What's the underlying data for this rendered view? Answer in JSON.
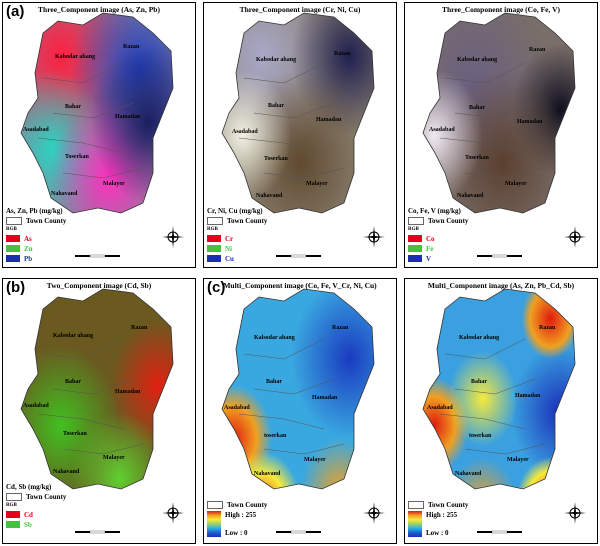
{
  "town_labels": [
    "Razan",
    "Kabodar ahang",
    "Bahar",
    "Hamadan",
    "Asadabad",
    "Toserkan",
    "Malayer",
    "Nahavand"
  ],
  "legend_common": {
    "town_county": "Town County",
    "rgb": "RGB"
  },
  "panels": [
    {
      "id": "p1",
      "letter": "(a)",
      "title": "Three_Component image (As, Zn, Pb)",
      "legend_title": "As, Zn, Pb (mg/kg)",
      "town_labels": [
        "Razan",
        "Kabodar ahang",
        "Bahar",
        "Hamadan",
        "Asadabad",
        "Toserkan",
        "Malayer",
        "Nahavand"
      ],
      "channels": [
        {
          "label": "As",
          "color": "#e3001b"
        },
        {
          "label": "Zn",
          "color": "#44c23d"
        },
        {
          "label": "Pb",
          "color": "#1a2fb0"
        }
      ]
    },
    {
      "id": "p2",
      "letter": "",
      "title": "Three_Component image (Cr, Ni, Cu)",
      "legend_title": "Cr, Ni, Cu (mg/kg)",
      "town_labels": [
        "Razan",
        "Kabodar ahang",
        "Bahar",
        "Hamadan",
        "Asadabad",
        "Toserkan",
        "Malayer",
        "Nahavand"
      ],
      "channels": [
        {
          "label": "Cr",
          "color": "#e3001b"
        },
        {
          "label": "Ni",
          "color": "#44c23d"
        },
        {
          "label": "Cu",
          "color": "#1a2fb0"
        }
      ]
    },
    {
      "id": "p3",
      "letter": "",
      "title": "Three_Component image (Co, Fe, V)",
      "legend_title": "Co, Fe, V (mg/kg)",
      "town_labels": [
        "Razan",
        "Kabodar ahang",
        "Bahar",
        "Hamadan",
        "Asadabad",
        "Toserkan",
        "Malayer",
        "Nahavand"
      ],
      "channels": [
        {
          "label": "Co",
          "color": "#e3001b"
        },
        {
          "label": "Fe",
          "color": "#44c23d"
        },
        {
          "label": "V",
          "color": "#1a2fb0"
        }
      ]
    },
    {
      "id": "p4",
      "letter": "(b)",
      "title": "Two_Component image (Cd, Sb)",
      "legend_title": "Cd, Sb (mg/kg)",
      "town_labels": [
        "Razan",
        "Kabodar ahang",
        "Bahar",
        "Hamadan",
        "Asadabad",
        "Toserkan",
        "Malayer",
        "Nahavand"
      ],
      "channels": [
        {
          "label": "Cd",
          "color": "#e3001b"
        },
        {
          "label": "Sb",
          "color": "#44c23d"
        }
      ]
    },
    {
      "id": "p5",
      "letter": "(c)",
      "title": "Multi_Component image (Co, Fe, V_Cr, Ni, Cu)",
      "legend_title": "",
      "town_labels": [
        "Razan",
        "Kalsodar ahang",
        "Bahar",
        "Hamadan",
        "Asadabad",
        "toserkan",
        "Malayer",
        "Nahavand"
      ],
      "ramp": {
        "high": "High : 255",
        "low": "Low : 0"
      }
    },
    {
      "id": "p6",
      "letter": "",
      "title": "Multi_Component image (As, Zn, Pb_Cd, Sb)",
      "legend_title": "",
      "town_labels": [
        "Razan",
        "Kabodar ahang",
        "Bahar",
        "Hamadan",
        "Asadabad",
        "toserkan",
        "Malayer",
        "Nahavand"
      ],
      "ramp": {
        "high": "High : 255",
        "low": "Low : 0"
      }
    }
  ]
}
